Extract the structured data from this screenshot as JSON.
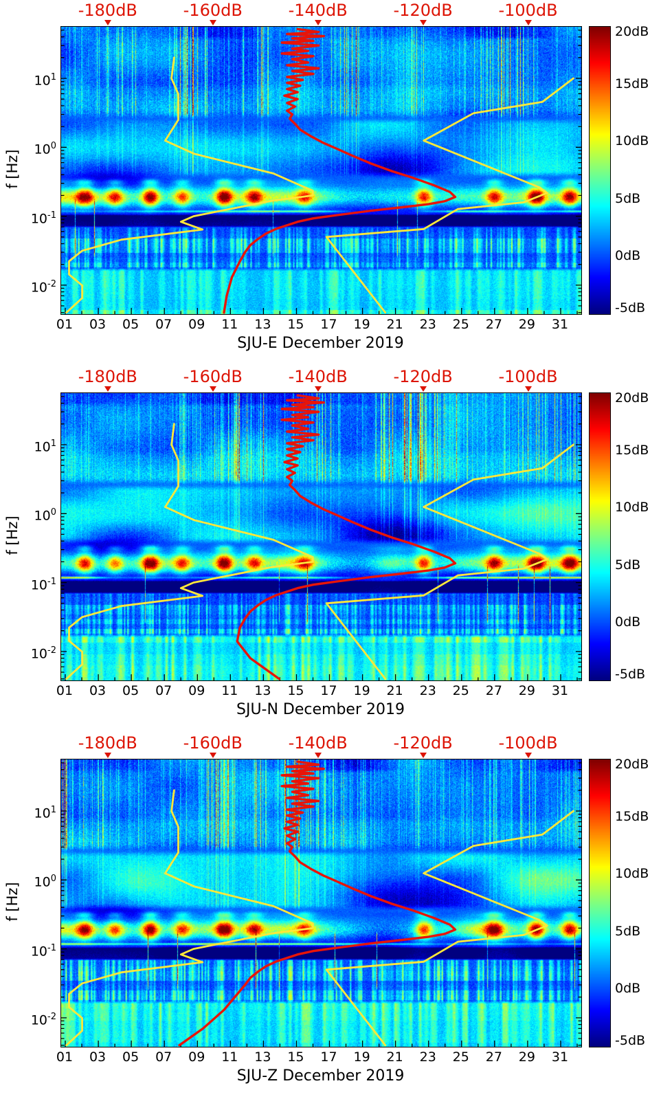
{
  "figure": {
    "background": "#ffffff",
    "text_color": "#000000",
    "accent_red": "#dd1405",
    "curve_yellow": "#ffe83a",
    "curve_red": "#e81408"
  },
  "chart_data": {
    "type": "heatmap",
    "panels": [
      {
        "title": "SJU-E December 2019",
        "channel": "SJU-E",
        "red_curve_tail_db_hz": [
          [
            -155,
            0.022
          ],
          [
            -156.5,
            0.013
          ],
          [
            -157.5,
            0.007
          ],
          [
            -158,
            0.004
          ]
        ]
      },
      {
        "title": "SJU-N December 2019",
        "channel": "SJU-N",
        "red_curve_tail_db_hz": [
          [
            -155,
            0.022
          ],
          [
            -155.5,
            0.014
          ],
          [
            -153,
            0.008
          ],
          [
            -147.5,
            0.004
          ]
        ]
      },
      {
        "title": "SJU-Z December 2019",
        "channel": "SJU-Z",
        "red_curve_tail_db_hz": [
          [
            -155.5,
            0.022
          ],
          [
            -158,
            0.013
          ],
          [
            -162,
            0.007
          ],
          [
            -166.5,
            0.004
          ]
        ]
      }
    ],
    "shared": {
      "ylabel": "f [Hz]",
      "x_axis": {
        "unit": "day of month",
        "tick_labels": [
          "01",
          "03",
          "05",
          "07",
          "09",
          "11",
          "13",
          "15",
          "17",
          "19",
          "21",
          "23",
          "25",
          "27",
          "29",
          "31"
        ],
        "labeled_days": [
          1,
          3,
          5,
          7,
          9,
          11,
          13,
          15,
          17,
          19,
          21,
          23,
          25,
          27,
          29,
          31
        ],
        "day_range": [
          1,
          32
        ]
      },
      "y_axis": {
        "scale": "log",
        "unit": "Hz",
        "freq_range_hz": [
          0.0038,
          56
        ],
        "tick_base": "10",
        "tick_exponents": [
          1,
          0,
          -1,
          -2
        ]
      },
      "top_axis": {
        "unit": "dB",
        "db_range": [
          -189,
          -90
        ],
        "ticks_db": [
          -180,
          -160,
          -140,
          -120,
          -100
        ],
        "tick_labels": [
          "-180dB",
          "-160dB",
          "-140dB",
          "-120dB",
          "-100dB"
        ]
      },
      "colorbar": {
        "colormap": "jet",
        "min_db": -5,
        "max_db": 20,
        "ticks_db": [
          20,
          15,
          10,
          5,
          0,
          -5
        ],
        "tick_labels": [
          "20dB",
          "15dB",
          "10dB",
          "5dB",
          "0dB",
          "-5dB"
        ]
      },
      "curves": {
        "yellow_reference_low_db_hz": [
          [
            -167.5,
            20
          ],
          [
            -168.0,
            10
          ],
          [
            -166.7,
            5.9
          ],
          [
            -166.7,
            2.5
          ],
          [
            -169.2,
            1.25
          ],
          [
            -163.7,
            0.806
          ],
          [
            -148.6,
            0.417
          ],
          [
            -141.1,
            0.233
          ],
          [
            -141.1,
            0.2
          ],
          [
            -149.0,
            0.167
          ],
          [
            -163.8,
            0.1
          ],
          [
            -166.2,
            0.083
          ],
          [
            -162.1,
            0.064
          ],
          [
            -177.5,
            0.0457
          ],
          [
            -185.0,
            0.0316
          ],
          [
            -187.5,
            0.0222
          ],
          [
            -187.5,
            0.0143
          ],
          [
            -185.0,
            0.0099
          ],
          [
            -185.0,
            0.0065
          ],
          [
            -188.0,
            0.004
          ]
        ],
        "yellow_reference_high_db_hz": [
          [
            -91.5,
            10
          ],
          [
            -97.4,
            4.55
          ],
          [
            -110.5,
            3.125
          ],
          [
            -120.0,
            1.25
          ],
          [
            -98.0,
            0.263
          ],
          [
            -96.5,
            0.217
          ],
          [
            -101.0,
            0.159
          ],
          [
            -113.5,
            0.127
          ],
          [
            -120.0,
            0.065
          ],
          [
            -138.5,
            0.05
          ],
          [
            -127.3,
            0.004
          ]
        ],
        "red_spectrum_db_hz": [
          [
            -144,
            52
          ],
          [
            -140,
            47
          ],
          [
            -146,
            44
          ],
          [
            -139,
            41
          ],
          [
            -145,
            38
          ],
          [
            -141,
            35
          ],
          [
            -147,
            33
          ],
          [
            -140,
            30
          ],
          [
            -145,
            27
          ],
          [
            -142,
            25
          ],
          [
            -147,
            23
          ],
          [
            -141,
            21
          ],
          [
            -145,
            19
          ],
          [
            -142,
            17
          ],
          [
            -146,
            15.5
          ],
          [
            -140,
            14
          ],
          [
            -145,
            12.8
          ],
          [
            -141,
            11.6
          ],
          [
            -146,
            10.5
          ],
          [
            -143,
            9.5
          ],
          [
            -146,
            8.6
          ],
          [
            -143.5,
            7.8
          ],
          [
            -146,
            7
          ],
          [
            -144,
            6.3
          ],
          [
            -146.5,
            5.6
          ],
          [
            -144,
            5
          ],
          [
            -146,
            4.4
          ],
          [
            -144.5,
            3.9
          ],
          [
            -146,
            3.4
          ],
          [
            -145,
            3
          ],
          [
            -145.5,
            2.6
          ],
          [
            -144.5,
            2.2
          ],
          [
            -143.5,
            1.8
          ],
          [
            -141.5,
            1.45
          ],
          [
            -139,
            1.15
          ],
          [
            -136.5,
            0.95
          ],
          [
            -133.5,
            0.75
          ],
          [
            -130,
            0.58
          ],
          [
            -126,
            0.45
          ],
          [
            -122,
            0.36
          ],
          [
            -118,
            0.28
          ],
          [
            -115,
            0.225
          ],
          [
            -114,
            0.19
          ],
          [
            -116,
            0.165
          ],
          [
            -119,
            0.15
          ],
          [
            -124,
            0.135
          ],
          [
            -130,
            0.12
          ],
          [
            -136,
            0.105
          ],
          [
            -141,
            0.093
          ],
          [
            -144,
            0.083
          ],
          [
            -146,
            0.074
          ],
          [
            -148,
            0.066
          ],
          [
            -150,
            0.056
          ],
          [
            -151.5,
            0.047
          ],
          [
            -153,
            0.038
          ],
          [
            -154,
            0.03
          ]
        ]
      },
      "microseism_bright_episodes_day_intensity": [
        [
          2.4,
          1.25
        ],
        [
          4.2,
          0.95
        ],
        [
          6.3,
          1.5
        ],
        [
          8.2,
          1.0
        ],
        [
          10.7,
          1.55
        ],
        [
          12.5,
          1.05
        ],
        [
          15.5,
          0.85
        ],
        [
          22.6,
          1.2
        ],
        [
          26.8,
          1.15
        ],
        [
          29.3,
          1.45
        ],
        [
          31.3,
          1.3
        ]
      ]
    }
  }
}
